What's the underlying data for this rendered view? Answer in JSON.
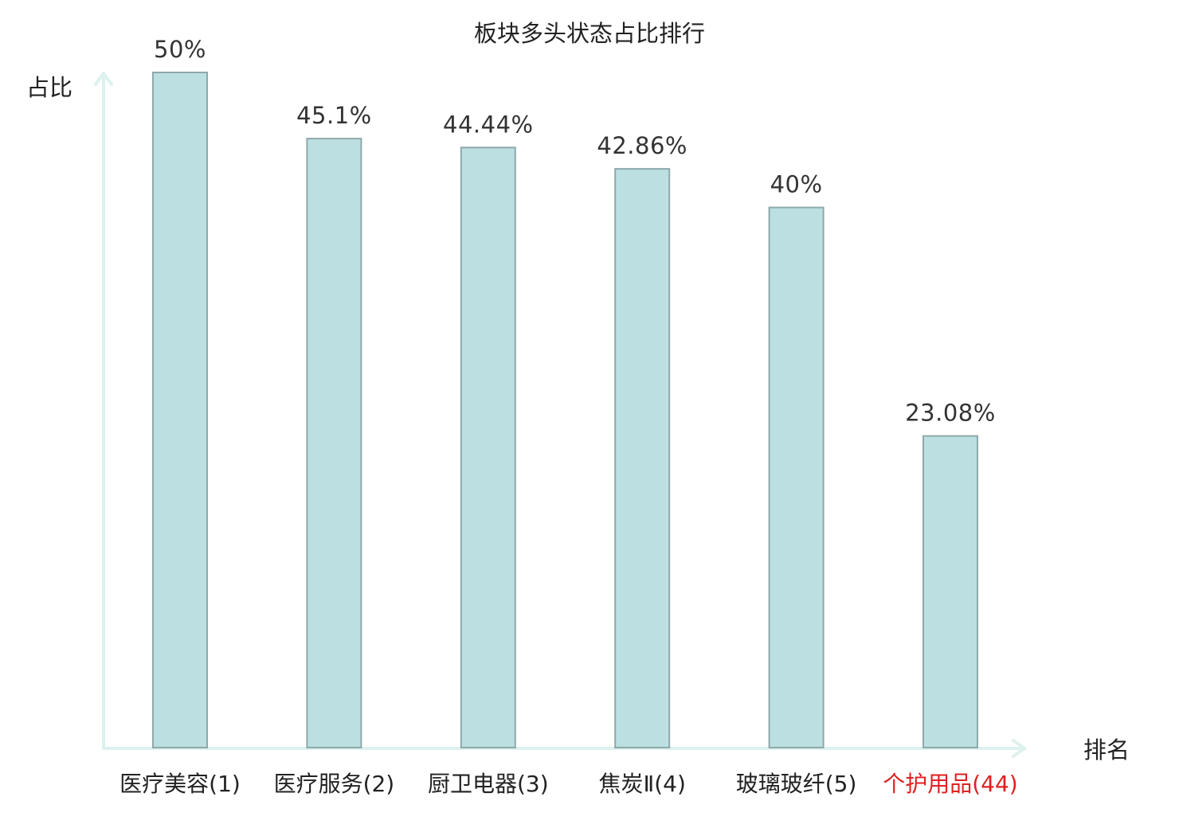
{
  "chart_data": {
    "type": "bar",
    "title": "板块多头状态占比排行",
    "ylabel": "占比",
    "xlabel": "排名",
    "ylim": [
      0,
      50
    ],
    "categories": [
      "医疗美容(1)",
      "医疗服务(2)",
      "厨卫电器(3)",
      "焦炭Ⅱ(4)",
      "玻璃玻纤(5)",
      "个护用品(44)"
    ],
    "values": [
      50,
      45.1,
      44.44,
      42.86,
      40,
      23.08
    ],
    "value_labels": [
      "50%",
      "45.1%",
      "44.44%",
      "42.86%",
      "40%",
      "23.08%"
    ],
    "highlight_index": 5,
    "grid": false,
    "legend": "none"
  },
  "colors": {
    "bar_fill": "#bce0e2",
    "bar_stroke": "#8fa8aa",
    "axis": "#ddf1ee",
    "category_text": "#222222",
    "highlight_text": "#e02020"
  }
}
